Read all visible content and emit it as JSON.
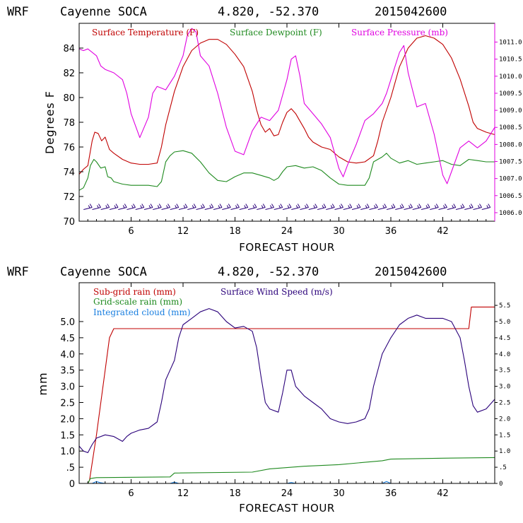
{
  "chart_data": [
    {
      "type": "line",
      "title": {
        "model": "WRF",
        "station": "Cayenne SOCA",
        "coords": "4.820, -52.370",
        "run": "2015042600"
      },
      "xlabel": "FORECAST HOUR",
      "ylabel": "Degrees F",
      "xlim": [
        0,
        48
      ],
      "ylim": [
        70,
        86
      ],
      "y2lim": [
        1005.75,
        1011.55
      ],
      "x_ticks": [
        6,
        12,
        18,
        24,
        30,
        36,
        42
      ],
      "x_tick_labels": [
        "6",
        "12",
        "18",
        "24",
        "30",
        "36",
        "42"
      ],
      "y_ticks": [
        70,
        72,
        74,
        76,
        78,
        80,
        82,
        84
      ],
      "y_tick_labels": [
        "70",
        "72",
        "74",
        "76",
        "78",
        "80",
        "82",
        "84"
      ],
      "y2_ticks": [
        1006.0,
        1006.5,
        1007.0,
        1007.5,
        1008.0,
        1008.5,
        1009.0,
        1009.5,
        1010.0,
        1010.5,
        1011.0
      ],
      "y2_tick_labels": [
        "1006.0",
        "1006.5",
        "1007.0",
        "1007.5",
        "1008.0",
        "1008.5",
        "1009.0",
        "1009.5",
        "1010.0",
        "1010.5",
        "1011.0"
      ],
      "legend": [
        {
          "label": "Surface Temperature (F)",
          "color": "#c00000"
        },
        {
          "label": "Surface Dewpoint (F)",
          "color": "#1f8a1f"
        },
        {
          "label": "Surface Pressure (mb)",
          "color": "#e000e0"
        }
      ],
      "series": [
        {
          "name": "Surface Temperature (F)",
          "color": "#c00000",
          "axis": "left",
          "x": [
            0,
            0.5,
            1,
            1.5,
            1.8,
            2.2,
            2.6,
            3,
            3.5,
            4,
            5,
            6,
            7,
            8,
            9,
            9.5,
            10,
            11,
            12,
            13,
            14,
            15,
            16,
            17,
            18,
            19,
            20,
            20.5,
            21,
            21.5,
            22,
            22.5,
            23,
            23.5,
            24,
            24.5,
            25,
            25.5,
            26,
            26.5,
            27,
            28,
            29,
            30,
            31,
            32,
            33,
            34,
            34.5,
            35,
            36,
            37,
            38,
            39,
            40,
            41,
            42,
            43,
            44,
            45,
            45.5,
            46,
            47,
            48
          ],
          "values": [
            73.8,
            74.2,
            74.5,
            76.5,
            77.2,
            77.1,
            76.5,
            76.8,
            75.8,
            75.5,
            75.0,
            74.7,
            74.6,
            74.6,
            74.7,
            76.0,
            77.8,
            80.5,
            82.5,
            83.8,
            84.4,
            84.7,
            84.7,
            84.3,
            83.5,
            82.5,
            80.5,
            79.0,
            77.8,
            77.2,
            77.5,
            76.9,
            77.0,
            78.0,
            78.8,
            79.1,
            78.7,
            78.1,
            77.5,
            76.8,
            76.4,
            76.0,
            75.8,
            75.2,
            74.8,
            74.7,
            74.8,
            75.3,
            76.5,
            78.0,
            80.0,
            82.5,
            84.0,
            84.8,
            85.0,
            84.8,
            84.3,
            83.2,
            81.5,
            79.3,
            78.0,
            77.5,
            77.2,
            77.0
          ]
        },
        {
          "name": "Surface Dewpoint (F)",
          "color": "#1f8a1f",
          "axis": "left",
          "x": [
            0,
            0.5,
            1,
            1.3,
            1.7,
            2,
            2.5,
            3,
            3.3,
            3.7,
            4,
            5,
            6,
            7,
            8,
            9,
            9.5,
            10,
            10.5,
            11,
            12,
            13,
            14,
            15,
            16,
            17,
            18,
            19,
            20,
            21,
            22,
            22.5,
            23,
            23.5,
            24,
            25,
            26,
            27,
            28,
            29,
            30,
            31,
            32,
            33,
            33.5,
            34,
            35,
            35.5,
            36,
            37,
            38,
            39,
            40,
            41,
            42,
            43,
            44,
            45,
            46,
            47,
            48
          ],
          "values": [
            72.5,
            72.7,
            73.5,
            74.5,
            75.0,
            74.8,
            74.3,
            74.4,
            73.6,
            73.5,
            73.2,
            73.0,
            72.9,
            72.9,
            72.9,
            72.8,
            73.2,
            74.8,
            75.3,
            75.6,
            75.7,
            75.5,
            74.8,
            73.9,
            73.3,
            73.2,
            73.6,
            73.9,
            73.9,
            73.7,
            73.5,
            73.3,
            73.5,
            74.0,
            74.4,
            74.5,
            74.3,
            74.4,
            74.1,
            73.5,
            73.0,
            72.9,
            72.9,
            72.9,
            73.5,
            74.8,
            75.2,
            75.5,
            75.1,
            74.7,
            74.9,
            74.6,
            74.7,
            74.8,
            74.9,
            74.6,
            74.5,
            75.0,
            74.9,
            74.8,
            74.8
          ]
        },
        {
          "name": "Surface Pressure (mb)",
          "color": "#e000e0",
          "axis": "right",
          "x": [
            0,
            0.5,
            1,
            2,
            2.5,
            3,
            4,
            5,
            5.5,
            6,
            7,
            8,
            8.5,
            9,
            10,
            11,
            12,
            12.5,
            13,
            13.5,
            14,
            15,
            16,
            17,
            18,
            19,
            20,
            21,
            22,
            23,
            24,
            24.5,
            25,
            25.5,
            26,
            27,
            28,
            29,
            30,
            30.5,
            31,
            32,
            33,
            34,
            35,
            35.5,
            36,
            36.5,
            37,
            37.5,
            38,
            39,
            40,
            41,
            42,
            42.5,
            43,
            44,
            45,
            46,
            47,
            48
          ],
          "values": [
            1010.8,
            1010.75,
            1010.8,
            1010.6,
            1010.3,
            1010.2,
            1010.1,
            1009.9,
            1009.5,
            1008.9,
            1008.2,
            1008.8,
            1009.5,
            1009.7,
            1009.6,
            1010.0,
            1010.6,
            1011.2,
            1011.4,
            1011.3,
            1010.6,
            1010.3,
            1009.5,
            1008.5,
            1007.8,
            1007.7,
            1008.4,
            1008.8,
            1008.7,
            1009.0,
            1009.9,
            1010.5,
            1010.6,
            1010.0,
            1009.2,
            1008.9,
            1008.6,
            1008.2,
            1007.3,
            1007.05,
            1007.4,
            1008.0,
            1008.7,
            1008.9,
            1009.2,
            1009.5,
            1009.9,
            1010.3,
            1010.7,
            1010.9,
            1010.1,
            1009.1,
            1009.2,
            1008.3,
            1007.1,
            1006.85,
            1007.2,
            1007.9,
            1008.1,
            1007.9,
            1008.1,
            1008.5
          ]
        }
      ],
      "wind_barbs": {
        "color": "#2a007a",
        "level": 71,
        "spacing_hours": 1
      }
    },
    {
      "type": "line",
      "title": {
        "model": "WRF",
        "station": "Cayenne SOCA",
        "coords": "4.820, -52.370",
        "run": "2015042600"
      },
      "xlabel": "FORECAST HOUR",
      "ylabel": "mm",
      "xlim": [
        0,
        48
      ],
      "ylim": [
        0,
        6.2
      ],
      "y2lim": [
        0,
        6.2
      ],
      "x_ticks": [
        6,
        12,
        18,
        24,
        30,
        36,
        42
      ],
      "x_tick_labels": [
        "6",
        "12",
        "18",
        "24",
        "30",
        "36",
        "42"
      ],
      "y_ticks": [
        0,
        0.5,
        1.0,
        1.5,
        2.0,
        2.5,
        3.0,
        3.5,
        4.0,
        4.5,
        5.0
      ],
      "y_tick_labels": [
        "0",
        ".5",
        "1.0",
        "1.5",
        "2.0",
        "2.5",
        "3.0",
        "3.5",
        "4.0",
        "4.5",
        "5.0"
      ],
      "y2_ticks": [
        0,
        0.5,
        1.0,
        1.5,
        2.0,
        2.5,
        3.0,
        3.5,
        4.0,
        4.5,
        5.0,
        5.5
      ],
      "y2_tick_labels": [
        "0",
        ".5",
        "1.0",
        "1.5",
        "2.0",
        "2.5",
        "3.0",
        "3.5",
        "4.0",
        "4.5",
        "5.0",
        "5.5"
      ],
      "legend": [
        {
          "label": "Sub-grid rain (mm)",
          "color": "#c00000"
        },
        {
          "label": "Surface Wind Speed (m/s)",
          "color": "#2a007a"
        },
        {
          "label": "Grid-scale rain (mm)",
          "color": "#1f8a1f"
        },
        {
          "label": "Integrated cloud (mm)",
          "color": "#1a7fe0"
        }
      ],
      "series": [
        {
          "name": "Sub-grid rain (mm)",
          "color": "#c00000",
          "axis": "left",
          "x": [
            0,
            1,
            1.2,
            2,
            3,
            3.5,
            4,
            45,
            45.3,
            48
          ],
          "values": [
            0,
            0,
            0.1,
            1.5,
            3.5,
            4.5,
            4.78,
            4.78,
            5.45,
            5.45
          ]
        },
        {
          "name": "Grid-scale rain (mm)",
          "color": "#1f8a1f",
          "axis": "left",
          "x": [
            0,
            1,
            1.3,
            2,
            10.5,
            11,
            20,
            22,
            26,
            30,
            35,
            36,
            42,
            48
          ],
          "values": [
            0,
            0,
            0.15,
            0.18,
            0.2,
            0.32,
            0.35,
            0.45,
            0.53,
            0.58,
            0.7,
            0.75,
            0.78,
            0.8
          ]
        },
        {
          "name": "Integrated cloud (mm)",
          "color": "#1a7fe0",
          "axis": "left",
          "x": [
            0,
            1.5,
            2,
            2.5,
            3,
            10.5,
            11,
            11.5,
            24,
            24.5,
            25,
            35,
            35.5,
            36,
            48
          ],
          "values": [
            0,
            0,
            0.06,
            0.02,
            0,
            0,
            0.04,
            0,
            0,
            0.03,
            0,
            0,
            0.06,
            0,
            0
          ]
        },
        {
          "name": "Surface Wind Speed (m/s)",
          "color": "#2a007a",
          "axis": "right",
          "x": [
            0,
            0.5,
            1,
            1.5,
            2,
            3,
            4,
            5,
            5.5,
            6,
            7,
            8,
            9,
            9.5,
            10,
            10.5,
            11,
            11.5,
            12,
            13,
            14,
            15,
            16,
            17,
            18,
            19,
            20,
            20.5,
            21,
            21.5,
            22,
            23,
            23.5,
            24,
            24.5,
            25,
            26,
            27,
            28,
            29,
            30,
            31,
            32,
            33,
            33.5,
            34,
            35,
            36,
            37,
            38,
            39,
            40,
            41,
            42,
            43,
            44,
            44.5,
            45,
            45.5,
            46,
            47,
            48
          ],
          "values": [
            1.15,
            1.0,
            0.95,
            1.2,
            1.4,
            1.5,
            1.45,
            1.3,
            1.45,
            1.55,
            1.65,
            1.7,
            1.9,
            2.5,
            3.2,
            3.5,
            3.8,
            4.5,
            4.9,
            5.1,
            5.3,
            5.4,
            5.3,
            5.0,
            4.8,
            4.85,
            4.7,
            4.2,
            3.3,
            2.5,
            2.3,
            2.2,
            2.8,
            3.5,
            3.5,
            3.0,
            2.7,
            2.5,
            2.3,
            2.0,
            1.9,
            1.85,
            1.9,
            2.0,
            2.3,
            3.0,
            4.0,
            4.5,
            4.9,
            5.1,
            5.2,
            5.1,
            5.1,
            5.1,
            5.0,
            4.5,
            3.8,
            3.0,
            2.4,
            2.2,
            2.3,
            2.6
          ]
        }
      ]
    }
  ]
}
